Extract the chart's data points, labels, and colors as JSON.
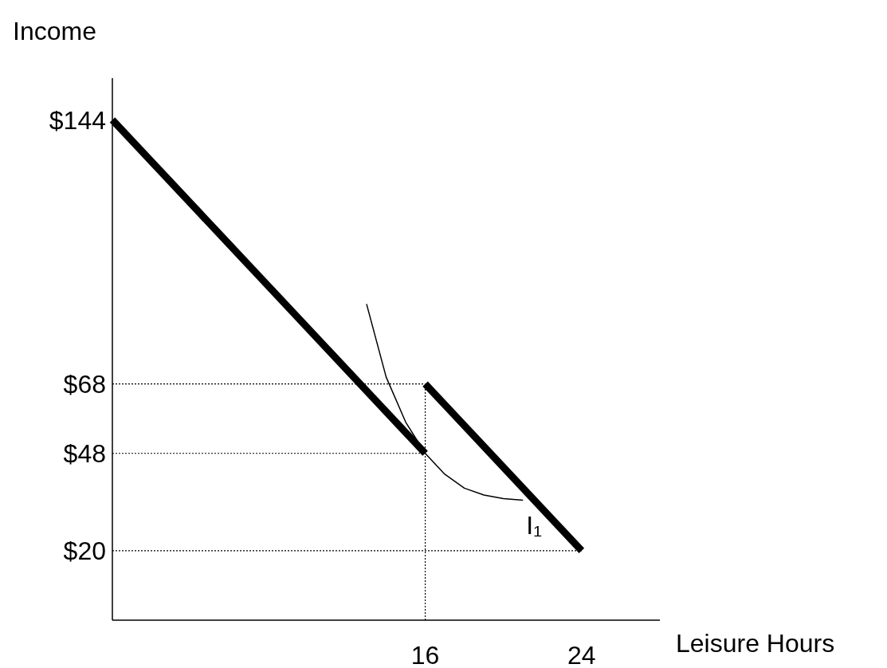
{
  "chart_data": {
    "type": "line",
    "xlabel": "Leisure Hours",
    "ylabel": "Income",
    "xlim": [
      0,
      28
    ],
    "ylim": [
      0,
      156
    ],
    "xticks": [
      16,
      24
    ],
    "yticks": [
      {
        "value": 144,
        "label": "$144"
      },
      {
        "value": 68,
        "label": "$68"
      },
      {
        "value": 48,
        "label": "$48"
      },
      {
        "value": 20,
        "label": "$20"
      }
    ],
    "marker": "none",
    "series": [
      {
        "color": "#000000",
        "line_style": "solid",
        "x": [
          0,
          16
        ],
        "values": [
          144,
          48
        ]
      },
      {
        "color": "#000000",
        "line_style": "solid",
        "x": [
          16,
          24
        ],
        "values": [
          68,
          20
        ]
      },
      {
        "name": "I₁",
        "color": "#000000",
        "line_style": "solid",
        "x": [
          13,
          14,
          15,
          16,
          17,
          18,
          19,
          20,
          21
        ],
        "values": [
          91,
          70,
          57,
          48,
          42,
          38,
          36,
          35,
          34.5
        ]
      },
      {
        "color": "#000000",
        "line_style": "dotted",
        "x": [
          0,
          16
        ],
        "values": [
          68,
          68
        ]
      },
      {
        "color": "#000000",
        "line_style": "dotted",
        "x": [
          0,
          16
        ],
        "values": [
          48,
          48
        ]
      },
      {
        "color": "#000000",
        "line_style": "dotted",
        "x": [
          0,
          24
        ],
        "values": [
          20,
          20
        ]
      },
      {
        "color": "#000000",
        "line_style": "dotted",
        "x": [
          16,
          16
        ],
        "values": [
          0,
          68
        ]
      }
    ]
  }
}
